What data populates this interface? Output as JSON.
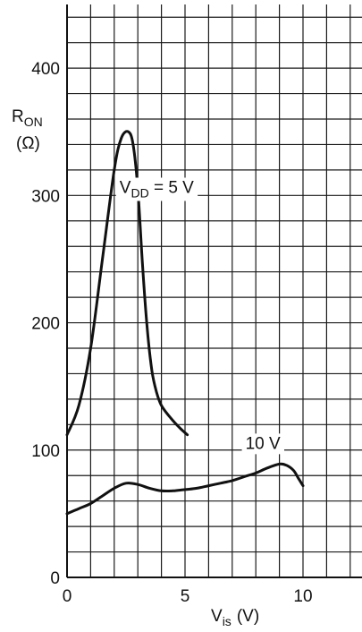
{
  "chart_data": {
    "type": "line",
    "title": "",
    "xlabel": {
      "main": "V",
      "sub": "is",
      "unit": "(V)"
    },
    "ylabel": {
      "main": "R",
      "sub": "ON",
      "unit": "(Ω)"
    },
    "xlim": [
      0,
      12.5
    ],
    "ylim": [
      0,
      450
    ],
    "x_ticks": [
      0,
      5,
      10
    ],
    "y_ticks": [
      0,
      100,
      200,
      300,
      400
    ],
    "grid": true,
    "series": [
      {
        "name": {
          "main": "V",
          "sub": "DD",
          "rest": " = 5 V"
        },
        "x": [
          0,
          0.5,
          1.0,
          1.5,
          2.0,
          2.3,
          2.6,
          2.8,
          3.0,
          3.2,
          3.4,
          3.6,
          3.8,
          4.0,
          4.4,
          4.8,
          5.1
        ],
        "y": [
          112,
          135,
          180,
          250,
          320,
          345,
          350,
          340,
          305,
          245,
          195,
          162,
          145,
          135,
          125,
          117,
          112
        ]
      },
      {
        "name": {
          "main": "",
          "sub": "",
          "rest": "10 V"
        },
        "x": [
          0,
          0.5,
          1.0,
          1.5,
          2.0,
          2.5,
          3.0,
          3.5,
          4.0,
          4.5,
          5.0,
          5.5,
          6.0,
          6.5,
          7.0,
          7.5,
          8.0,
          8.5,
          9.0,
          9.3,
          9.6,
          9.8,
          10.0
        ],
        "y": [
          50,
          54,
          58,
          64,
          70,
          74,
          73,
          70,
          68,
          68,
          69,
          70,
          72,
          74,
          76,
          79,
          82,
          86,
          89,
          88,
          84,
          78,
          72
        ]
      }
    ],
    "annotations": [
      {
        "series": 0,
        "x": 3.8,
        "y": 302
      },
      {
        "series": 1,
        "x": 8.3,
        "y": 101
      }
    ]
  }
}
